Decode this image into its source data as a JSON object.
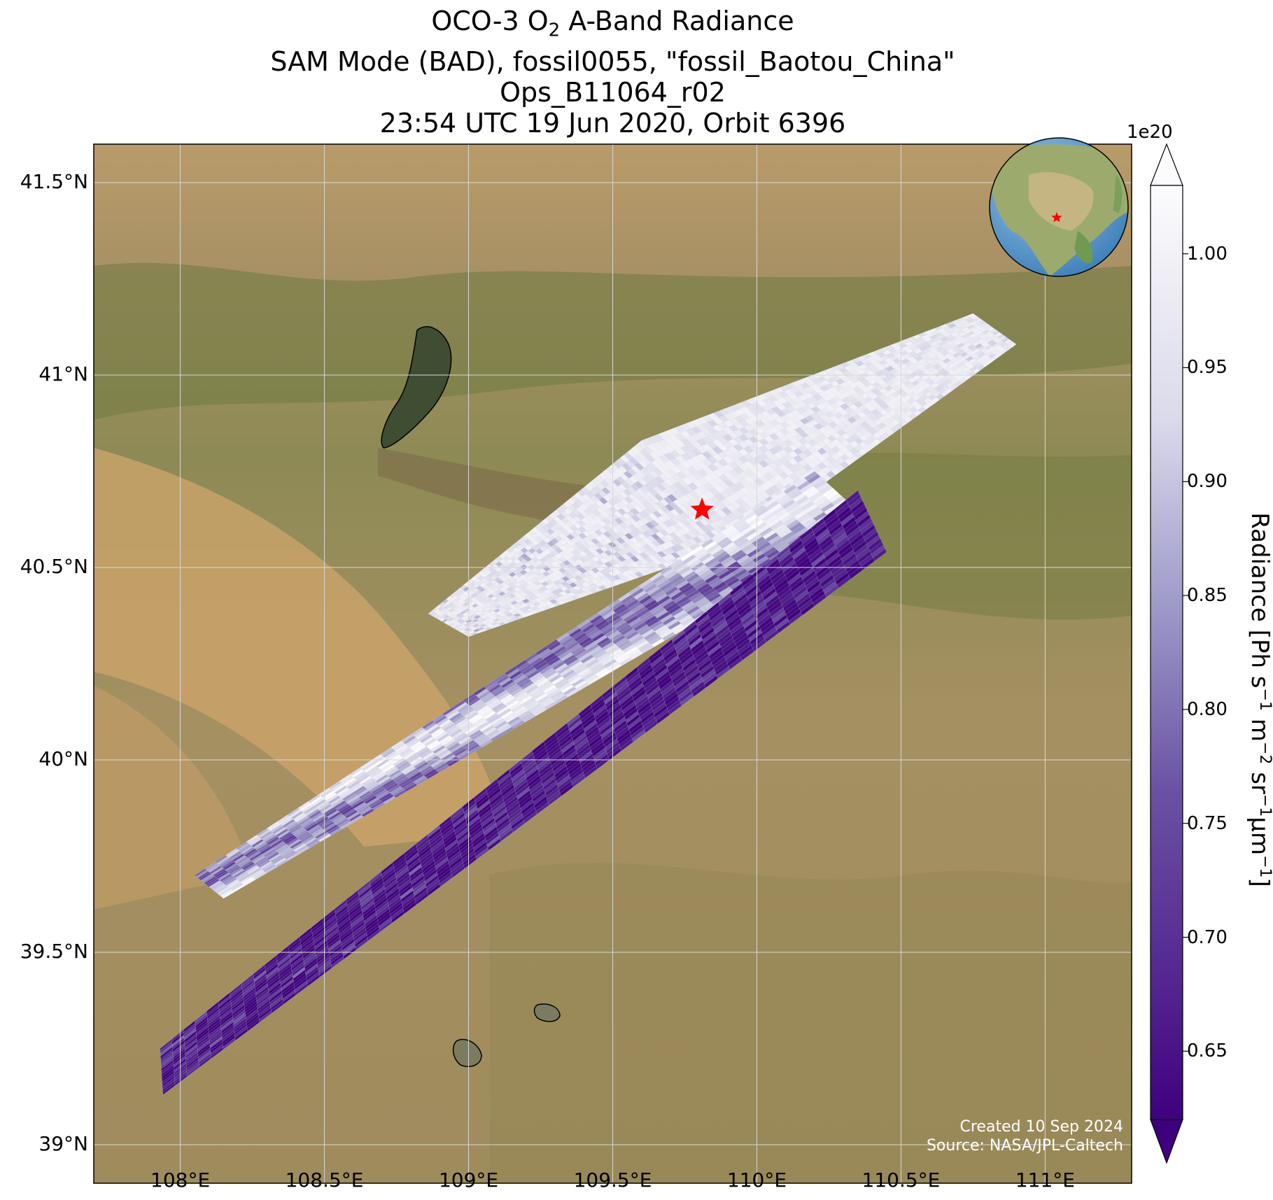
{
  "title": {
    "line1_prefix": "OCO-3 O",
    "line1_sub": "2",
    "line1_suffix": " A-Band Radiance",
    "line2": "SAM Mode (BAD), fossil0055, \"fossil_Baotou_China\"",
    "line3": "Ops_B11064_r02",
    "line4": "23:54 UTC 19 Jun 2020, Orbit 6396"
  },
  "axes": {
    "lat_ticks": [
      "41.5°N",
      "41°N",
      "40.5°N",
      "40°N",
      "39.5°N",
      "39°N"
    ],
    "lon_ticks": [
      "108°E",
      "108.5°E",
      "109°E",
      "109.5°E",
      "110°E",
      "110.5°E",
      "111°E"
    ],
    "lat_values": [
      41.5,
      41.0,
      40.5,
      40.0,
      39.5,
      39.0
    ],
    "lon_values": [
      108.0,
      108.5,
      109.0,
      109.5,
      110.0,
      110.5,
      111.0
    ],
    "lon_range": [
      107.7,
      111.3
    ],
    "lat_range": [
      38.9,
      41.6
    ],
    "grid": true
  },
  "colorbar": {
    "exponent": "1e20",
    "label_main": "Radiance [Ph s",
    "label_sup1": "−1",
    "label_m": " m",
    "label_sup2": "−2",
    "label_sr": " sr",
    "label_sup3": "−1",
    "label_um": "µm",
    "label_sup4": "−1",
    "label_end": "]",
    "ticks": [
      "1.00",
      "0.95",
      "0.90",
      "0.85",
      "0.80",
      "0.75",
      "0.70",
      "0.65"
    ],
    "tick_values": [
      1.0,
      0.95,
      0.9,
      0.85,
      0.8,
      0.75,
      0.7,
      0.65
    ],
    "range": [
      0.62,
      1.03
    ],
    "extend": "both",
    "colormap": "Purples_r",
    "colors": {
      "low": "#3f007d",
      "mid": "#807dba",
      "high": "#fcfbfd"
    }
  },
  "site": {
    "name": "fossil_Baotou_China",
    "lon": 109.81,
    "lat": 40.65,
    "marker": "red-star",
    "color": "#ff0000"
  },
  "swaths": [
    {
      "id": "upper-north",
      "corners": [
        [
          110.75,
          41.16
        ],
        [
          110.9,
          41.08
        ],
        [
          109.96,
          40.57
        ],
        [
          109.6,
          40.83
        ]
      ],
      "trend": "bright",
      "value_range": [
        0.9,
        1.0
      ]
    },
    {
      "id": "upper-south",
      "corners": [
        [
          109.6,
          40.83
        ],
        [
          109.96,
          40.57
        ],
        [
          109.0,
          40.32
        ],
        [
          108.86,
          40.38
        ]
      ],
      "trend": "bright",
      "value_range": [
        0.85,
        1.0
      ]
    },
    {
      "id": "middle-band",
      "corners": [
        [
          110.2,
          40.75
        ],
        [
          110.39,
          40.62
        ],
        [
          108.15,
          39.64
        ],
        [
          108.05,
          39.7
        ]
      ],
      "trend": "mixed",
      "value_range": [
        0.7,
        1.0
      ]
    },
    {
      "id": "lower-band",
      "corners": [
        [
          110.35,
          40.7
        ],
        [
          110.45,
          40.54
        ],
        [
          107.94,
          39.13
        ],
        [
          107.93,
          39.25
        ]
      ],
      "trend": "dark",
      "value_range": [
        0.62,
        0.8
      ]
    }
  ],
  "inset": {
    "type": "globe",
    "center": "East Asia",
    "marker": "red-star"
  },
  "credits": {
    "created": "Created 10 Sep 2024",
    "source": "Source: NASA/JPL-Caltech"
  }
}
